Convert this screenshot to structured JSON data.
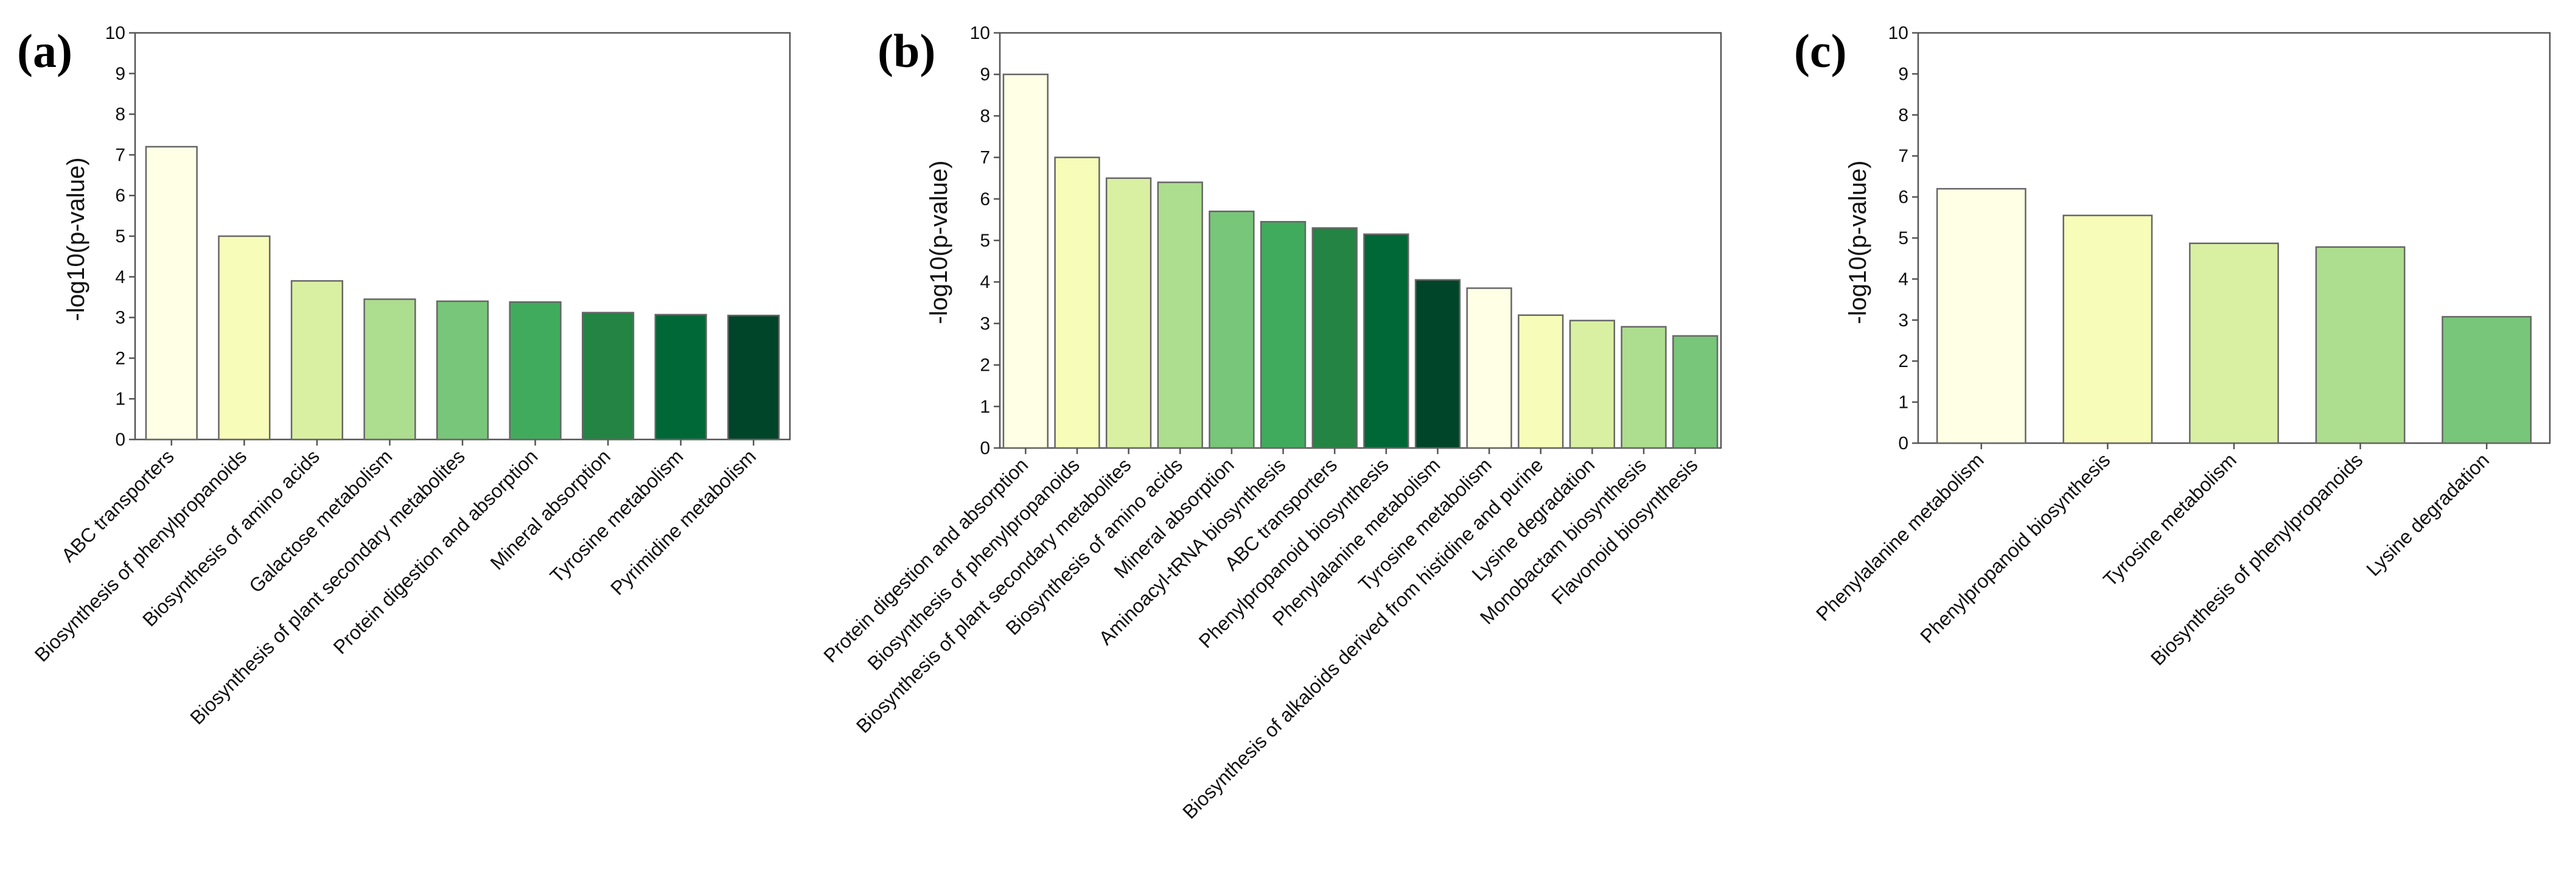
{
  "chart_data": [
    {
      "panel": "(a)",
      "type": "bar",
      "ylabel": "-log10(p-value)",
      "ylim": [
        0,
        10
      ],
      "yticks": [
        0,
        1,
        2,
        3,
        4,
        5,
        6,
        7,
        8,
        9,
        10
      ],
      "categories": [
        "ABC transporters",
        "Biosynthesis of phenylpropanoids",
        "Biosynthesis of amino acids",
        "Galactose metabolism",
        "Biosynthesis of plant secondary metabolites",
        "Protein digestion and absorption",
        "Mineral absorption",
        "Tyrosine metabolism",
        "Pyrimidine metabolism"
      ],
      "values": [
        7.2,
        5.0,
        3.9,
        3.45,
        3.4,
        3.38,
        3.12,
        3.07,
        3.05
      ],
      "colors": [
        "#ffffe5",
        "#f7fcb9",
        "#d9f0a3",
        "#addd8e",
        "#78c679",
        "#41ab5d",
        "#238443",
        "#006837",
        "#004529"
      ]
    },
    {
      "panel": "(b)",
      "type": "bar",
      "ylabel": "-log10(p-value)",
      "ylim": [
        0,
        10
      ],
      "yticks": [
        0,
        1,
        2,
        3,
        4,
        5,
        6,
        7,
        8,
        9,
        10
      ],
      "categories": [
        "Protein digestion and absorption",
        "Biosynthesis of phenylpropanoids",
        "Biosynthesis of plant secondary metabolites",
        "Biosynthesis of amino acids",
        "Mineral absorption",
        "Aminoacyl-tRNA biosynthesis",
        "ABC transporters",
        "Phenylpropanoid biosynthesis",
        "Phenylalanine metabolism",
        "Tyrosine metabolism",
        "Biosynthesis of alkaloids derived from histidine and purine",
        "Lysine degradation",
        "Monobactam biosynthesis",
        "Flavonoid biosynthesis"
      ],
      "values": [
        9.0,
        7.0,
        6.5,
        6.4,
        5.7,
        5.45,
        5.3,
        5.15,
        4.05,
        3.85,
        3.2,
        3.07,
        2.92,
        2.7
      ],
      "colors": [
        "#ffffe5",
        "#f7fcb9",
        "#d9f0a3",
        "#addd8e",
        "#78c679",
        "#41ab5d",
        "#238443",
        "#006837",
        "#004529",
        "#ffffe5",
        "#f7fcb9",
        "#d9f0a3",
        "#addd8e",
        "#78c679"
      ]
    },
    {
      "panel": "(c)",
      "type": "bar",
      "ylabel": "-log10(p-value)",
      "ylim": [
        0,
        10
      ],
      "yticks": [
        0,
        1,
        2,
        3,
        4,
        5,
        6,
        7,
        8,
        9,
        10
      ],
      "categories": [
        "Phenylalanine metabolism",
        "Phenylpropanoid biosynthesis",
        "Tyrosine metabolism",
        "Biosynthesis of phenylpropanoids",
        "Lysine degradation"
      ],
      "values": [
        6.2,
        5.55,
        4.87,
        4.78,
        3.08
      ],
      "colors": [
        "#ffffe5",
        "#f7fcb9",
        "#d9f0a3",
        "#addd8e",
        "#78c679"
      ]
    }
  ]
}
